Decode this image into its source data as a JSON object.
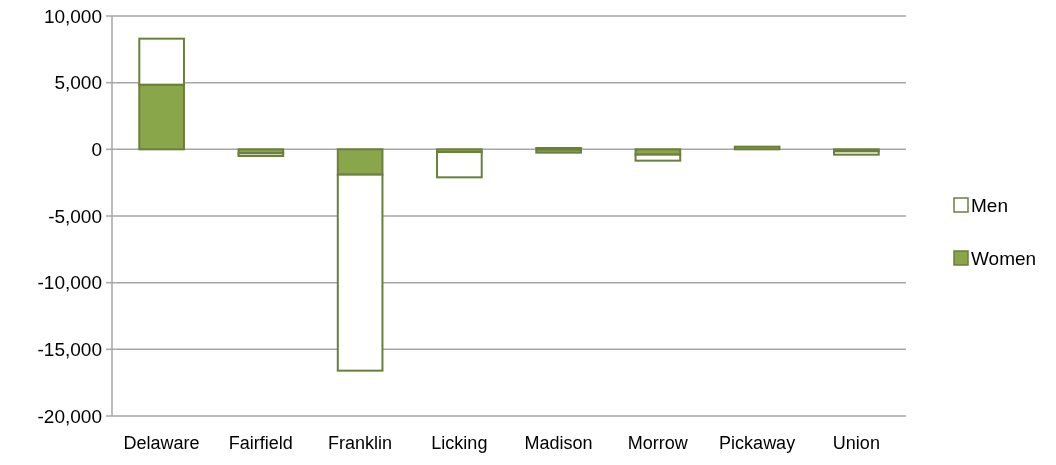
{
  "chart_data": {
    "type": "bar",
    "stacked": true,
    "categories": [
      "Delaware",
      "Fairfield",
      "Franklin",
      "Licking",
      "Madison",
      "Morrow",
      "Pickaway",
      "Union"
    ],
    "series": [
      {
        "name": "Women",
        "color": "#8aa64a",
        "values": [
          4850,
          -300,
          -1900,
          -200,
          -250,
          -400,
          200,
          -150
        ]
      },
      {
        "name": "Men",
        "color": "#ffffff",
        "values": [
          3450,
          -200,
          -14700,
          -1900,
          100,
          -450,
          null,
          -250
        ]
      }
    ],
    "ylim": [
      -20000,
      10000
    ],
    "yticks": [
      {
        "value": -20000,
        "label": "-20,000"
      },
      {
        "value": -15000,
        "label": "-15,000"
      },
      {
        "value": -10000,
        "label": "-10,000"
      },
      {
        "value": -5000,
        "label": "-5,000"
      },
      0,
      {
        "value": 5000,
        "label": "5,000"
      },
      {
        "value": 10000,
        "label": "10,000"
      }
    ],
    "grid": "y",
    "legend": "right"
  }
}
